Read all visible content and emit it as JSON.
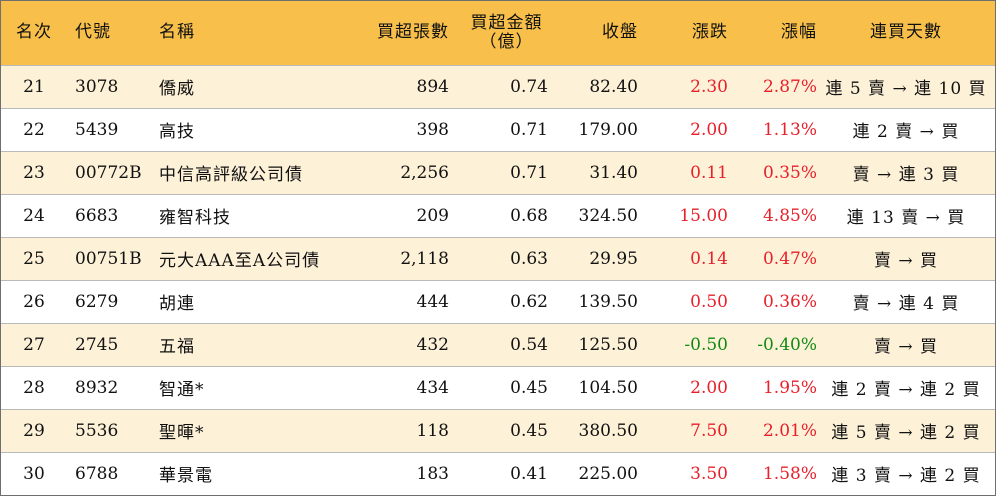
{
  "table": {
    "headers": {
      "rank": "名次",
      "code": "代號",
      "name": "名稱",
      "net_buy_lots": "買超張數",
      "net_buy_amount_line1": "買超金額",
      "net_buy_amount_line2": "（億）",
      "close": "收盤",
      "change": "漲跌",
      "change_pct": "漲幅",
      "streak": "連買天數"
    },
    "rows": [
      {
        "rank": "21",
        "code": "3078",
        "name": "僑威",
        "lots": "894",
        "amount": "0.74",
        "close": "82.40",
        "change": "2.30",
        "pct": "2.87%",
        "dir": "up",
        "streak": "連 5 賣 → 連 10 買"
      },
      {
        "rank": "22",
        "code": "5439",
        "name": "高技",
        "lots": "398",
        "amount": "0.71",
        "close": "179.00",
        "change": "2.00",
        "pct": "1.13%",
        "dir": "up",
        "streak": "連 2 賣 → 買"
      },
      {
        "rank": "23",
        "code": "00772B",
        "name": "中信高評級公司債",
        "lots": "2,256",
        "amount": "0.71",
        "close": "31.40",
        "change": "0.11",
        "pct": "0.35%",
        "dir": "up",
        "streak": "賣 → 連 3 買"
      },
      {
        "rank": "24",
        "code": "6683",
        "name": "雍智科技",
        "lots": "209",
        "amount": "0.68",
        "close": "324.50",
        "change": "15.00",
        "pct": "4.85%",
        "dir": "up",
        "streak": "連 13 賣 → 買"
      },
      {
        "rank": "25",
        "code": "00751B",
        "name": "元大AAA至A公司債",
        "lots": "2,118",
        "amount": "0.63",
        "close": "29.95",
        "change": "0.14",
        "pct": "0.47%",
        "dir": "up",
        "streak": "賣 → 買"
      },
      {
        "rank": "26",
        "code": "6279",
        "name": "胡連",
        "lots": "444",
        "amount": "0.62",
        "close": "139.50",
        "change": "0.50",
        "pct": "0.36%",
        "dir": "up",
        "streak": "賣 → 連 4 買"
      },
      {
        "rank": "27",
        "code": "2745",
        "name": "五福",
        "lots": "432",
        "amount": "0.54",
        "close": "125.50",
        "change": "-0.50",
        "pct": "-0.40%",
        "dir": "down",
        "streak": "賣 → 買"
      },
      {
        "rank": "28",
        "code": "8932",
        "name": "智通*",
        "lots": "434",
        "amount": "0.45",
        "close": "104.50",
        "change": "2.00",
        "pct": "1.95%",
        "dir": "up",
        "streak": "連 2 賣 → 連 2 買"
      },
      {
        "rank": "29",
        "code": "5536",
        "name": "聖暉*",
        "lots": "118",
        "amount": "0.45",
        "close": "380.50",
        "change": "7.50",
        "pct": "2.01%",
        "dir": "up",
        "streak": "連 5 賣 → 連 2 買"
      },
      {
        "rank": "30",
        "code": "6788",
        "name": "華景電",
        "lots": "183",
        "amount": "0.41",
        "close": "225.00",
        "change": "3.50",
        "pct": "1.58%",
        "dir": "up",
        "streak": "連 3 賣 → 連 2 買"
      }
    ]
  },
  "colors": {
    "header_bg": "#f8c04b",
    "odd_row_bg": "#fdf1d8",
    "up": "#e8202a",
    "down": "#128a12"
  }
}
